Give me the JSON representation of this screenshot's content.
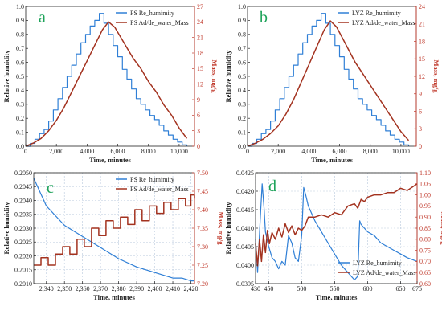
{
  "chart_data": [
    {
      "type": "line",
      "panel_label": "a",
      "xlabel": "Time, minutes",
      "ylabel": "Relative humidity",
      "y2label": "Mass, mg/g",
      "xlim": [
        0,
        11000
      ],
      "ylim": [
        0,
        1.0
      ],
      "y2lim": [
        0,
        27
      ],
      "xticks": [
        0,
        2000,
        4000,
        6000,
        8000,
        10000
      ],
      "xtick_labels": [
        "0",
        "2,000",
        "4,000",
        "6,000",
        "8,000",
        "10,000"
      ],
      "yticks": [
        0,
        0.1,
        0.2,
        0.3,
        0.4,
        0.5,
        0.6,
        0.7,
        0.8,
        0.9,
        1.0
      ],
      "ytick_labels": [
        "0.0",
        "0.1",
        "0.2",
        "0.3",
        "0.4",
        "0.5",
        "0.6",
        "0.7",
        "0.8",
        "0.9",
        "1.0"
      ],
      "y2ticks": [
        0,
        3,
        6,
        9,
        12,
        15,
        18,
        21,
        24,
        27
      ],
      "y2tick_labels": [
        "0",
        "3",
        "6",
        "9",
        "12",
        "15",
        "18",
        "21",
        "24",
        "27"
      ],
      "grid": false,
      "legend_position": "top-right",
      "series": [
        {
          "name": "PS Re_humimity",
          "axis": "left",
          "step": true,
          "color": "#2f7fd6",
          "x": [
            0,
            300,
            600,
            900,
            1200,
            1500,
            1800,
            2100,
            2400,
            2700,
            3000,
            3300,
            3600,
            3900,
            4200,
            4500,
            4800,
            5100,
            5400,
            5700,
            6000,
            6300,
            6600,
            6900,
            7200,
            7500,
            7800,
            8100,
            8400,
            8700,
            9000,
            9300,
            9600,
            9900,
            10200,
            10500
          ],
          "y": [
            0.0,
            0.02,
            0.05,
            0.09,
            0.12,
            0.18,
            0.26,
            0.34,
            0.42,
            0.5,
            0.58,
            0.66,
            0.74,
            0.8,
            0.86,
            0.9,
            0.95,
            0.88,
            0.8,
            0.72,
            0.64,
            0.55,
            0.48,
            0.41,
            0.34,
            0.3,
            0.26,
            0.22,
            0.19,
            0.15,
            0.11,
            0.08,
            0.05,
            0.03,
            0.01,
            0.0
          ]
        },
        {
          "name": "PS Ad/de_water_Mass",
          "axis": "right",
          "step": false,
          "color": "#a3321f",
          "x": [
            0,
            500,
            1000,
            1500,
            2000,
            2500,
            3000,
            3500,
            4000,
            4500,
            5000,
            5400,
            5800,
            6200,
            6600,
            7000,
            7500,
            8000,
            8500,
            9000,
            9500,
            10000,
            10500
          ],
          "y": [
            0.0,
            0.6,
            1.5,
            3.0,
            5.0,
            7.5,
            10.5,
            13.5,
            16.5,
            19.5,
            22.5,
            24.0,
            23.0,
            21.0,
            19.0,
            17.0,
            15.0,
            12.5,
            10.5,
            8.0,
            6.0,
            3.5,
            1.5
          ]
        }
      ]
    },
    {
      "type": "line",
      "panel_label": "b",
      "xlabel": "Time, minutes",
      "ylabel": "Relative humidity",
      "y2label": "Mass, mg/g",
      "xlim": [
        0,
        11000
      ],
      "ylim": [
        0,
        1.0
      ],
      "y2lim": [
        0,
        24
      ],
      "xticks": [
        0,
        2000,
        4000,
        6000,
        8000,
        10000
      ],
      "xtick_labels": [
        "0",
        "2,000",
        "4,000",
        "6,000",
        "8,000",
        "10,000"
      ],
      "yticks": [
        0,
        0.1,
        0.2,
        0.3,
        0.4,
        0.5,
        0.6,
        0.7,
        0.8,
        0.9,
        1.0
      ],
      "ytick_labels": [
        "0.0",
        "0.1",
        "0.2",
        "0.3",
        "0.4",
        "0.5",
        "0.6",
        "0.7",
        "0.8",
        "0.9",
        "1.0"
      ],
      "y2ticks": [
        0,
        3,
        6,
        9,
        12,
        15,
        18,
        21,
        24
      ],
      "y2tick_labels": [
        "0",
        "3",
        "6",
        "9",
        "12",
        "15",
        "18",
        "21",
        "24"
      ],
      "grid": false,
      "legend_position": "top-right",
      "series": [
        {
          "name": "LYZ Re_humimity",
          "axis": "left",
          "step": true,
          "color": "#2f7fd6",
          "x": [
            0,
            300,
            600,
            900,
            1200,
            1500,
            1800,
            2100,
            2400,
            2700,
            3000,
            3300,
            3600,
            3900,
            4200,
            4500,
            4800,
            5100,
            5400,
            5700,
            6000,
            6300,
            6600,
            6900,
            7200,
            7500,
            7800,
            8100,
            8400,
            8700,
            9000,
            9300,
            9600,
            9900,
            10200,
            10500
          ],
          "y": [
            0.0,
            0.02,
            0.05,
            0.09,
            0.12,
            0.18,
            0.26,
            0.34,
            0.42,
            0.5,
            0.58,
            0.66,
            0.74,
            0.8,
            0.86,
            0.9,
            0.95,
            0.88,
            0.8,
            0.72,
            0.64,
            0.55,
            0.48,
            0.41,
            0.34,
            0.3,
            0.26,
            0.22,
            0.19,
            0.15,
            0.11,
            0.08,
            0.05,
            0.03,
            0.01,
            0.0
          ]
        },
        {
          "name": "LYZ Ad/de_water_Mass",
          "axis": "right",
          "step": false,
          "color": "#a3321f",
          "x": [
            0,
            500,
            1000,
            1500,
            2000,
            2500,
            3000,
            3500,
            4000,
            4500,
            5000,
            5400,
            5800,
            6200,
            6600,
            7000,
            7500,
            8000,
            8500,
            9000,
            9500,
            10000,
            10500
          ],
          "y": [
            0.0,
            0.5,
            1.2,
            2.2,
            3.5,
            5.5,
            8.0,
            11.0,
            14.0,
            17.0,
            20.0,
            21.5,
            20.5,
            18.5,
            16.5,
            14.5,
            12.5,
            10.5,
            8.5,
            6.5,
            4.5,
            2.5,
            1.0
          ]
        }
      ]
    },
    {
      "type": "line",
      "panel_label": "c",
      "xlabel": "Time, minutes",
      "ylabel": "Relative humidity",
      "y2label": "Mass, mg/g",
      "xlim": [
        2333,
        2422
      ],
      "ylim": [
        0.201,
        0.205
      ],
      "y2lim": [
        7.2,
        7.5
      ],
      "xticks": [
        2340,
        2350,
        2360,
        2370,
        2380,
        2390,
        2400,
        2410,
        2420
      ],
      "xtick_labels": [
        "2,340",
        "2,350",
        "2,360",
        "2,370",
        "2,380",
        "2,390",
        "2,400",
        "2,410",
        "2,420"
      ],
      "yticks": [
        0.201,
        0.2015,
        0.202,
        0.2025,
        0.203,
        0.2035,
        0.204,
        0.2045,
        0.205
      ],
      "ytick_labels": [
        "0.2010",
        "0.2015",
        "0.2020",
        "0.2025",
        "0.2030",
        "0.2035",
        "0.2040",
        "0.2045",
        "0.2050"
      ],
      "y2ticks": [
        7.2,
        7.25,
        7.3,
        7.35,
        7.4,
        7.45,
        7.5
      ],
      "y2tick_labels": [
        "7.20",
        "7.25",
        "7.30",
        "7.35",
        "7.40",
        "7.45",
        "7.50"
      ],
      "grid": true,
      "legend_position": "top-right",
      "series": [
        {
          "name": "PS Re_humimity",
          "axis": "left",
          "step": false,
          "color": "#2f7fd6",
          "x": [
            2333,
            2340,
            2350,
            2360,
            2370,
            2380,
            2390,
            2400,
            2410,
            2415,
            2420,
            2422
          ],
          "y": [
            0.2048,
            0.2038,
            0.2031,
            0.2027,
            0.2023,
            0.2019,
            0.2016,
            0.2014,
            0.2012,
            0.2012,
            0.2011,
            0.2011
          ]
        },
        {
          "name": "PS Ad/de_water_Mass",
          "axis": "right",
          "step": true,
          "color": "#a3321f",
          "x": [
            2333,
            2337,
            2341,
            2345,
            2349,
            2353,
            2357,
            2361,
            2365,
            2369,
            2373,
            2377,
            2381,
            2385,
            2389,
            2393,
            2397,
            2401,
            2405,
            2409,
            2413,
            2417,
            2420,
            2422
          ],
          "y": [
            7.25,
            7.27,
            7.25,
            7.28,
            7.3,
            7.28,
            7.32,
            7.3,
            7.35,
            7.33,
            7.37,
            7.35,
            7.38,
            7.36,
            7.4,
            7.37,
            7.41,
            7.39,
            7.42,
            7.4,
            7.43,
            7.41,
            7.44,
            7.43
          ]
        }
      ]
    },
    {
      "type": "line",
      "panel_label": "d",
      "xlabel": "Time, minutes",
      "ylabel": "Relative humidity",
      "y2label": "Mass, mg/g",
      "xlim": [
        430,
        675
      ],
      "ylim": [
        0.0395,
        0.0425
      ],
      "y2lim": [
        0.6,
        1.1
      ],
      "xticks": [
        430,
        450,
        500,
        550,
        600,
        650,
        675
      ],
      "xtick_labels": [
        "430",
        "450",
        "500",
        "550",
        "600",
        "650",
        "675"
      ],
      "yticks": [
        0.0395,
        0.04,
        0.0405,
        0.041,
        0.0415,
        0.042,
        0.0425
      ],
      "ytick_labels": [
        "0.0395",
        "0.0400",
        "0.0405",
        "0.0410",
        "0.0415",
        "0.0420",
        "0.0425"
      ],
      "y2ticks": [
        0.6,
        0.65,
        0.7,
        0.75,
        0.8,
        0.85,
        0.9,
        0.95,
        1.0,
        1.05,
        1.1
      ],
      "y2tick_labels": [
        "0.60",
        "0.65",
        "0.70",
        "0.75",
        "0.80",
        "0.85",
        "0.90",
        "0.95",
        "1.00",
        "1.05",
        "1.10"
      ],
      "grid": true,
      "legend_position": "bottom-right",
      "series": [
        {
          "name": "LYZ Re_humimity",
          "axis": "left",
          "step": false,
          "color": "#2f7fd6",
          "x": [
            430,
            433,
            435,
            437,
            440,
            443,
            445,
            450,
            455,
            460,
            465,
            470,
            475,
            480,
            485,
            490,
            495,
            500,
            503,
            506,
            510,
            520,
            530,
            540,
            550,
            560,
            570,
            580,
            585,
            588,
            590,
            600,
            610,
            620,
            630,
            640,
            650,
            660,
            675
          ],
          "y": [
            0.0407,
            0.0398,
            0.0405,
            0.0412,
            0.0422,
            0.0415,
            0.0409,
            0.0405,
            0.0402,
            0.0401,
            0.0399,
            0.0401,
            0.04,
            0.0408,
            0.0406,
            0.0402,
            0.0401,
            0.0408,
            0.0421,
            0.0419,
            0.0416,
            0.0412,
            0.0409,
            0.0406,
            0.0403,
            0.04,
            0.0398,
            0.0396,
            0.0397,
            0.0412,
            0.0411,
            0.0409,
            0.0408,
            0.0406,
            0.0405,
            0.0404,
            0.0403,
            0.0402,
            0.0401
          ]
        },
        {
          "name": "LYZ Ad/de_water_Mass",
          "axis": "right",
          "step": false,
          "color": "#a3321f",
          "x": [
            430,
            433,
            436,
            439,
            442,
            445,
            448,
            451,
            455,
            460,
            465,
            470,
            475,
            480,
            485,
            490,
            495,
            500,
            505,
            510,
            520,
            530,
            540,
            550,
            560,
            570,
            580,
            585,
            590,
            595,
            600,
            610,
            620,
            630,
            640,
            650,
            660,
            670,
            675
          ],
          "y": [
            0.78,
            0.68,
            0.8,
            0.7,
            0.82,
            0.74,
            0.84,
            0.78,
            0.83,
            0.8,
            0.85,
            0.81,
            0.87,
            0.83,
            0.86,
            0.82,
            0.85,
            0.84,
            0.86,
            0.9,
            0.9,
            0.91,
            0.9,
            0.92,
            0.91,
            0.95,
            0.96,
            0.94,
            0.98,
            0.97,
            0.99,
            1.0,
            1.0,
            1.01,
            1.01,
            1.03,
            1.02,
            1.04,
            1.05
          ]
        }
      ]
    }
  ]
}
